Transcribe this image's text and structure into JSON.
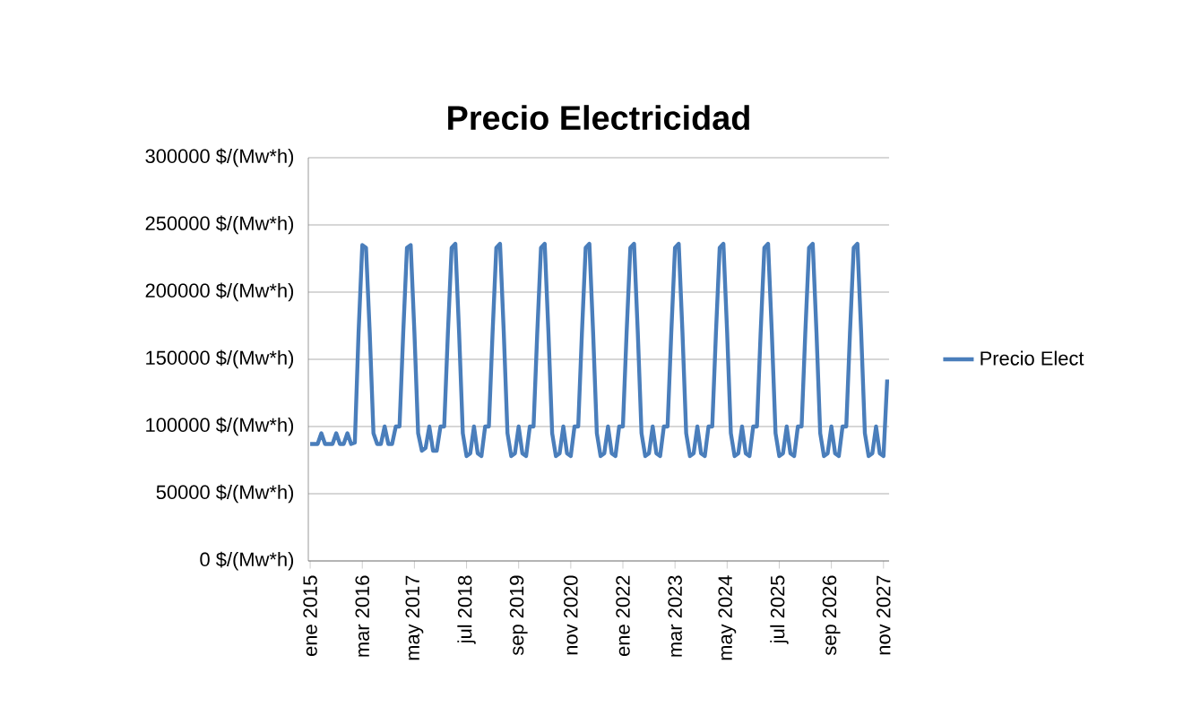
{
  "chart_data": {
    "type": "line",
    "title": "Precio Electricidad",
    "categories": [
      "ene 2015",
      null,
      null,
      null,
      null,
      null,
      null,
      null,
      null,
      null,
      null,
      null,
      null,
      null,
      "mar 2016",
      null,
      null,
      null,
      null,
      null,
      null,
      null,
      null,
      null,
      null,
      null,
      null,
      null,
      "may 2017",
      null,
      null,
      null,
      null,
      null,
      null,
      null,
      null,
      null,
      null,
      null,
      null,
      null,
      "jul 2018",
      null,
      null,
      null,
      null,
      null,
      null,
      null,
      null,
      null,
      null,
      null,
      null,
      null,
      "sep 2019",
      null,
      null,
      null,
      null,
      null,
      null,
      null,
      null,
      null,
      null,
      null,
      null,
      null,
      "nov 2020",
      null,
      null,
      null,
      null,
      null,
      null,
      null,
      null,
      null,
      null,
      null,
      null,
      null,
      "ene 2022",
      null,
      null,
      null,
      null,
      null,
      null,
      null,
      null,
      null,
      null,
      null,
      null,
      null,
      "mar 2023",
      null,
      null,
      null,
      null,
      null,
      null,
      null,
      null,
      null,
      null,
      null,
      null,
      null,
      "may 2024",
      null,
      null,
      null,
      null,
      null,
      null,
      null,
      null,
      null,
      null,
      null,
      null,
      null,
      "jul 2025",
      null,
      null,
      null,
      null,
      null,
      null,
      null,
      null,
      null,
      null,
      null,
      null,
      null,
      "sep 2026",
      null,
      null,
      null,
      null,
      null,
      null,
      null,
      null,
      null,
      null,
      null,
      null,
      null,
      "nov 2027",
      null
    ],
    "series": [
      {
        "name": "Precio Elect",
        "color": "#4a7ebb",
        "values": [
          87000,
          87000,
          87000,
          95000,
          87000,
          87000,
          87000,
          95000,
          87000,
          87000,
          95000,
          87000,
          88000,
          170000,
          235000,
          233000,
          170000,
          95000,
          87000,
          87000,
          100000,
          87000,
          87000,
          100000,
          100000,
          170000,
          233000,
          235000,
          170000,
          95000,
          82000,
          84000,
          100000,
          82000,
          82000,
          100000,
          100000,
          170000,
          233000,
          236000,
          170000,
          95000,
          78000,
          80000,
          100000,
          80000,
          78000,
          100000,
          100000,
          170000,
          233000,
          236000,
          170000,
          95000,
          78000,
          80000,
          100000,
          80000,
          78000,
          100000,
          100000,
          170000,
          233000,
          236000,
          170000,
          95000,
          78000,
          80000,
          100000,
          80000,
          78000,
          100000,
          100000,
          170000,
          233000,
          236000,
          170000,
          95000,
          78000,
          80000,
          100000,
          80000,
          78000,
          100000,
          100000,
          170000,
          233000,
          236000,
          170000,
          95000,
          78000,
          80000,
          100000,
          80000,
          78000,
          100000,
          100000,
          170000,
          233000,
          236000,
          170000,
          95000,
          78000,
          80000,
          100000,
          80000,
          78000,
          100000,
          100000,
          170000,
          233000,
          236000,
          170000,
          95000,
          78000,
          80000,
          100000,
          80000,
          78000,
          100000,
          100000,
          170000,
          233000,
          236000,
          170000,
          95000,
          78000,
          80000,
          100000,
          80000,
          78000,
          100000,
          100000,
          170000,
          233000,
          236000,
          170000,
          95000,
          78000,
          80000,
          100000,
          80000,
          78000,
          100000,
          100000,
          170000,
          233000,
          236000,
          170000,
          95000,
          78000,
          80000,
          100000,
          80000,
          78000,
          135000
        ]
      }
    ],
    "ylim": [
      0,
      300000
    ],
    "yticks": [
      {
        "value": 0,
        "label": "0 $/(Mw*h)"
      },
      {
        "value": 50000,
        "label": "50000 $/(Mw*h)"
      },
      {
        "value": 100000,
        "label": "100000 $/(Mw*h)"
      },
      {
        "value": 150000,
        "label": "150000 $/(Mw*h)"
      },
      {
        "value": 200000,
        "label": "200000 $/(Mw*h)"
      },
      {
        "value": 250000,
        "label": "250000 $/(Mw*h)"
      },
      {
        "value": 300000,
        "label": "300000 $/(Mw*h)"
      }
    ],
    "grid": "y",
    "legend": "right",
    "marker": "none",
    "line_style": "solid"
  }
}
